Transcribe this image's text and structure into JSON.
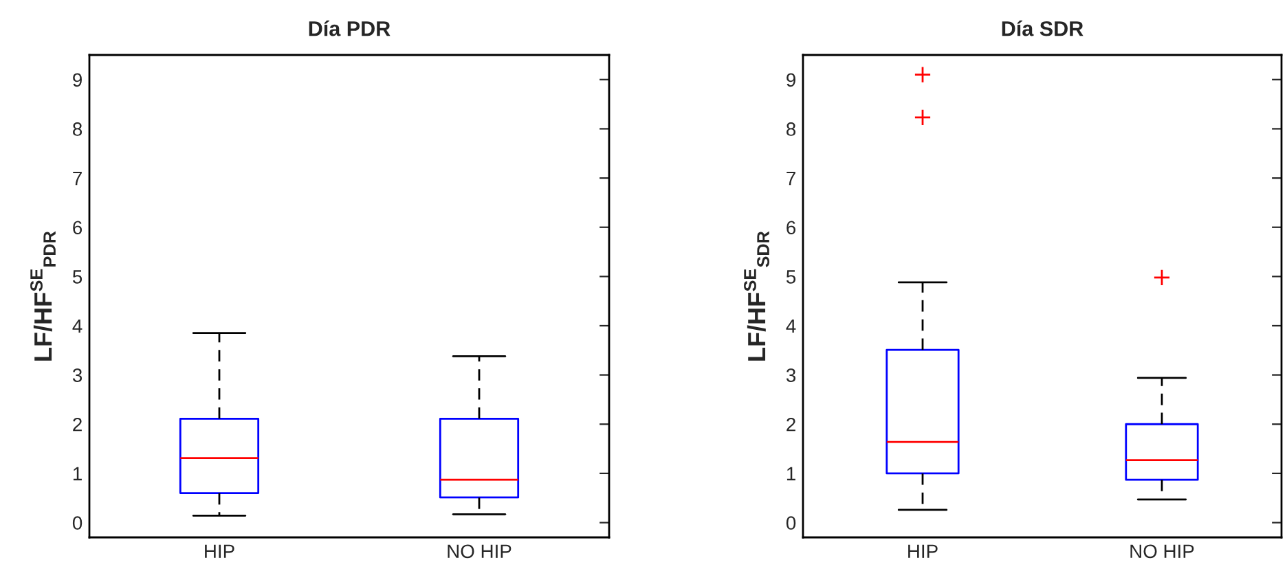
{
  "chart_data": [
    {
      "type": "box",
      "title": "Día PDR",
      "ylabel": "LF/HF$^{SE}$$_{PDR}$",
      "categories": [
        "HIP",
        "NO HIP"
      ],
      "ylim": [
        -0.3,
        9.5
      ],
      "yticks": [
        0,
        1,
        2,
        3,
        4,
        5,
        6,
        7,
        8,
        9
      ],
      "grid": false,
      "boxes": [
        {
          "low": 0.14,
          "q1": 0.6,
          "median": 1.31,
          "q3": 2.11,
          "high": 3.85
        },
        {
          "low": 0.17,
          "q1": 0.51,
          "median": 0.87,
          "q3": 2.11,
          "high": 3.38
        }
      ]
    },
    {
      "type": "box",
      "title": "Día SDR",
      "ylabel": "LF/HF$^{SE}$$_{SDR}$",
      "categories": [
        "HIP",
        "NO HIP"
      ],
      "ylim": [
        -0.3,
        9.5
      ],
      "yticks": [
        0,
        1,
        2,
        3,
        4,
        5,
        6,
        7,
        8,
        9
      ],
      "grid": false,
      "boxes": [
        {
          "low": 0.26,
          "q1": 1.0,
          "median": 1.64,
          "q3": 3.51,
          "high": 4.88,
          "outliers": [
            9.1,
            8.23
          ]
        },
        {
          "low": 0.47,
          "q1": 0.87,
          "median": 1.27,
          "q3": 2.0,
          "high": 2.94,
          "outliers": [
            4.98
          ]
        }
      ]
    }
  ]
}
